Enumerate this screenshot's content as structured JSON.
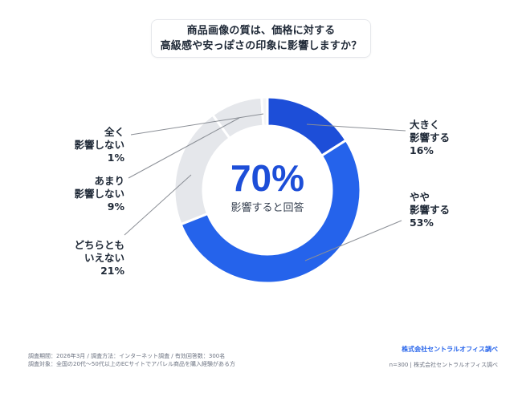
{
  "title": {
    "line1": "商品画像の質は、価格に対する",
    "line2": "高級感や安っぽさの印象に影響しますか？"
  },
  "center": {
    "value": "70%",
    "caption": "影響すると回答"
  },
  "labels": {
    "strong": {
      "line1": "大きく",
      "line2": "影響する",
      "pct": "16%"
    },
    "some": {
      "line1": "やや",
      "line2": "影響する",
      "pct": "53%"
    },
    "neutral": {
      "line1": "どちらとも",
      "line2": "いえない",
      "pct": "21%"
    },
    "little": {
      "line1": "あまり",
      "line2": "影響しない",
      "pct": "9%"
    },
    "none": {
      "line1": "全く",
      "line2": "影響しない",
      "pct": "1%"
    }
  },
  "footer": {
    "line1": "調査期間：2026年3月 / 調査方法：インターネット調査 / 有効回答数：300名",
    "line2": "調査対象：全国の20代〜50代以上のECサイトでアパレル商品を購入経験がある方",
    "brand": "株式会社セントラルオフィス調べ",
    "sample": "n=300 | 株式会社セントラルオフィス調べ"
  },
  "colors": {
    "strong": "#1d4ed8",
    "some": "#2563eb",
    "neutral": "#e5e7eb",
    "little": "#e5e7eb",
    "none": "#f3f4f6",
    "accent": "#1d4ed8"
  },
  "chart_data": {
    "type": "pie",
    "variant": "donut",
    "title": "商品画像の質は、価格に対する高級感や安っぽさの印象に影響しますか？",
    "categories": [
      "大きく影響する",
      "やや影響する",
      "どちらともいえない",
      "あまり影響しない",
      "全く影響しない"
    ],
    "values": [
      16,
      53,
      21,
      9,
      1
    ],
    "unit": "%",
    "center_annotation": "70% 影響すると回答",
    "n": 300,
    "source": "株式会社セントラルオフィス調べ"
  }
}
